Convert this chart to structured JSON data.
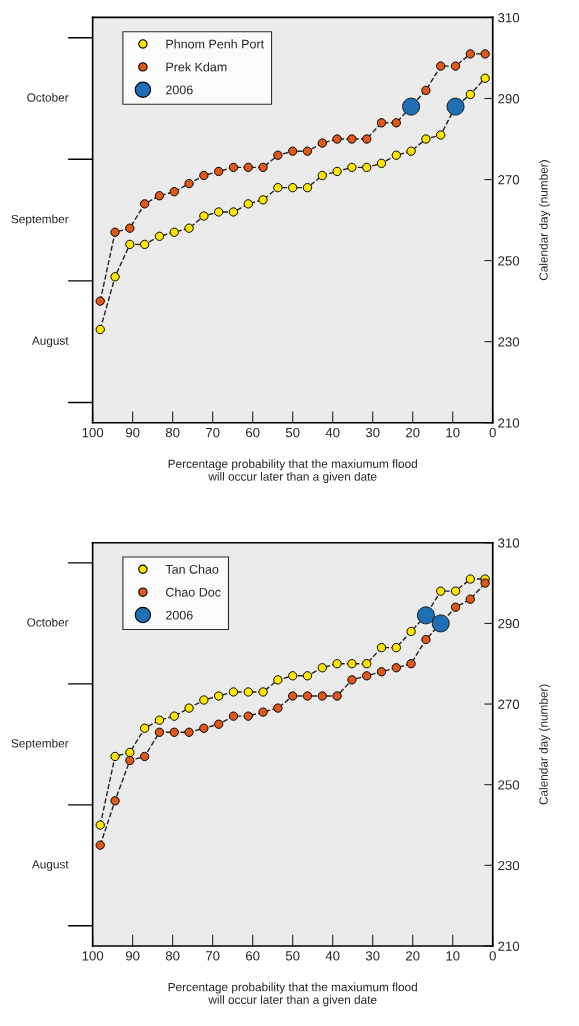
{
  "chart_data": [
    {
      "type": "line",
      "xlabel": "Percentage probability that the maxiumum flood\nwill occur later than a given date",
      "ylabel": "Calendar day (number)",
      "annotations": [
        "August",
        "September",
        "October"
      ],
      "x": [
        98.1,
        94.4,
        90.7,
        87.0,
        83.3,
        79.6,
        75.9,
        72.2,
        68.5,
        64.8,
        61.1,
        57.4,
        53.7,
        50.0,
        46.3,
        42.6,
        38.9,
        35.2,
        31.5,
        27.8,
        24.1,
        20.4,
        16.7,
        13.0,
        9.3,
        5.6,
        1.9
      ],
      "series": [
        {
          "name": "Phnom Penh Port",
          "color": "#ffe500",
          "values": [
            233,
            246,
            254,
            254,
            256,
            257,
            258,
            261,
            262,
            262,
            264,
            265,
            268,
            268,
            268,
            271,
            272,
            273,
            273,
            274,
            276,
            277,
            280,
            281,
            288,
            291,
            295
          ]
        },
        {
          "name": "Prek Kdam",
          "color": "#e0581a",
          "values": [
            240,
            257,
            258,
            264,
            266,
            267,
            269,
            271,
            272,
            273,
            273,
            273,
            276,
            277,
            277,
            279,
            280,
            280,
            280,
            284,
            284,
            288,
            292,
            298,
            298,
            301,
            301
          ]
        },
        {
          "name": "2006",
          "type": "scatter",
          "color": "#1f6fb5",
          "x": [
            20.4,
            9.3
          ],
          "values": [
            288,
            288
          ]
        }
      ],
      "xlim": [
        100,
        0
      ],
      "xticks": [
        100,
        90,
        80,
        70,
        60,
        50,
        40,
        30,
        20,
        10,
        0
      ],
      "ylim": [
        210,
        310
      ],
      "yticks": [
        210,
        230,
        250,
        270,
        290,
        310
      ],
      "legend": "top left",
      "marker": "circle",
      "line_style": "dashed"
    },
    {
      "type": "line",
      "xlabel": "Percentage probability that the maxiumum flood\nwill occur later than a given date",
      "ylabel": "Calendar day (number)",
      "annotations": [
        "August",
        "September",
        "October"
      ],
      "x": [
        98.1,
        94.4,
        90.7,
        87.0,
        83.3,
        79.6,
        75.9,
        72.2,
        68.5,
        64.8,
        61.1,
        57.4,
        53.7,
        50.0,
        46.3,
        42.6,
        38.9,
        35.2,
        31.5,
        27.8,
        24.1,
        20.4,
        16.7,
        13.0,
        9.3,
        5.6,
        1.9
      ],
      "series": [
        {
          "name": "Tan Chao",
          "color": "#ffe500",
          "values": [
            240,
            257,
            258,
            264,
            266,
            267,
            269,
            271,
            272,
            273,
            273,
            273,
            276,
            277,
            277,
            279,
            280,
            280,
            280,
            284,
            284,
            288,
            292,
            298,
            298,
            301,
            301
          ]
        },
        {
          "name": "Chao Doc",
          "color": "#e0581a",
          "values": [
            235,
            246,
            256,
            257,
            263,
            263,
            263,
            264,
            265,
            267,
            267,
            268,
            269,
            272,
            272,
            272,
            272,
            276,
            277,
            278,
            279,
            280,
            286,
            290,
            294,
            296,
            300
          ]
        },
        {
          "name": "2006",
          "type": "scatter",
          "color": "#1f6fb5",
          "x": [
            16.7,
            13.0
          ],
          "values": [
            292,
            290
          ]
        }
      ],
      "xlim": [
        100,
        0
      ],
      "xticks": [
        100,
        90,
        80,
        70,
        60,
        50,
        40,
        30,
        20,
        10,
        0
      ],
      "ylim": [
        210,
        310
      ],
      "yticks": [
        210,
        230,
        250,
        270,
        290,
        310
      ],
      "legend": "top left",
      "marker": "circle",
      "line_style": "dashed"
    }
  ]
}
